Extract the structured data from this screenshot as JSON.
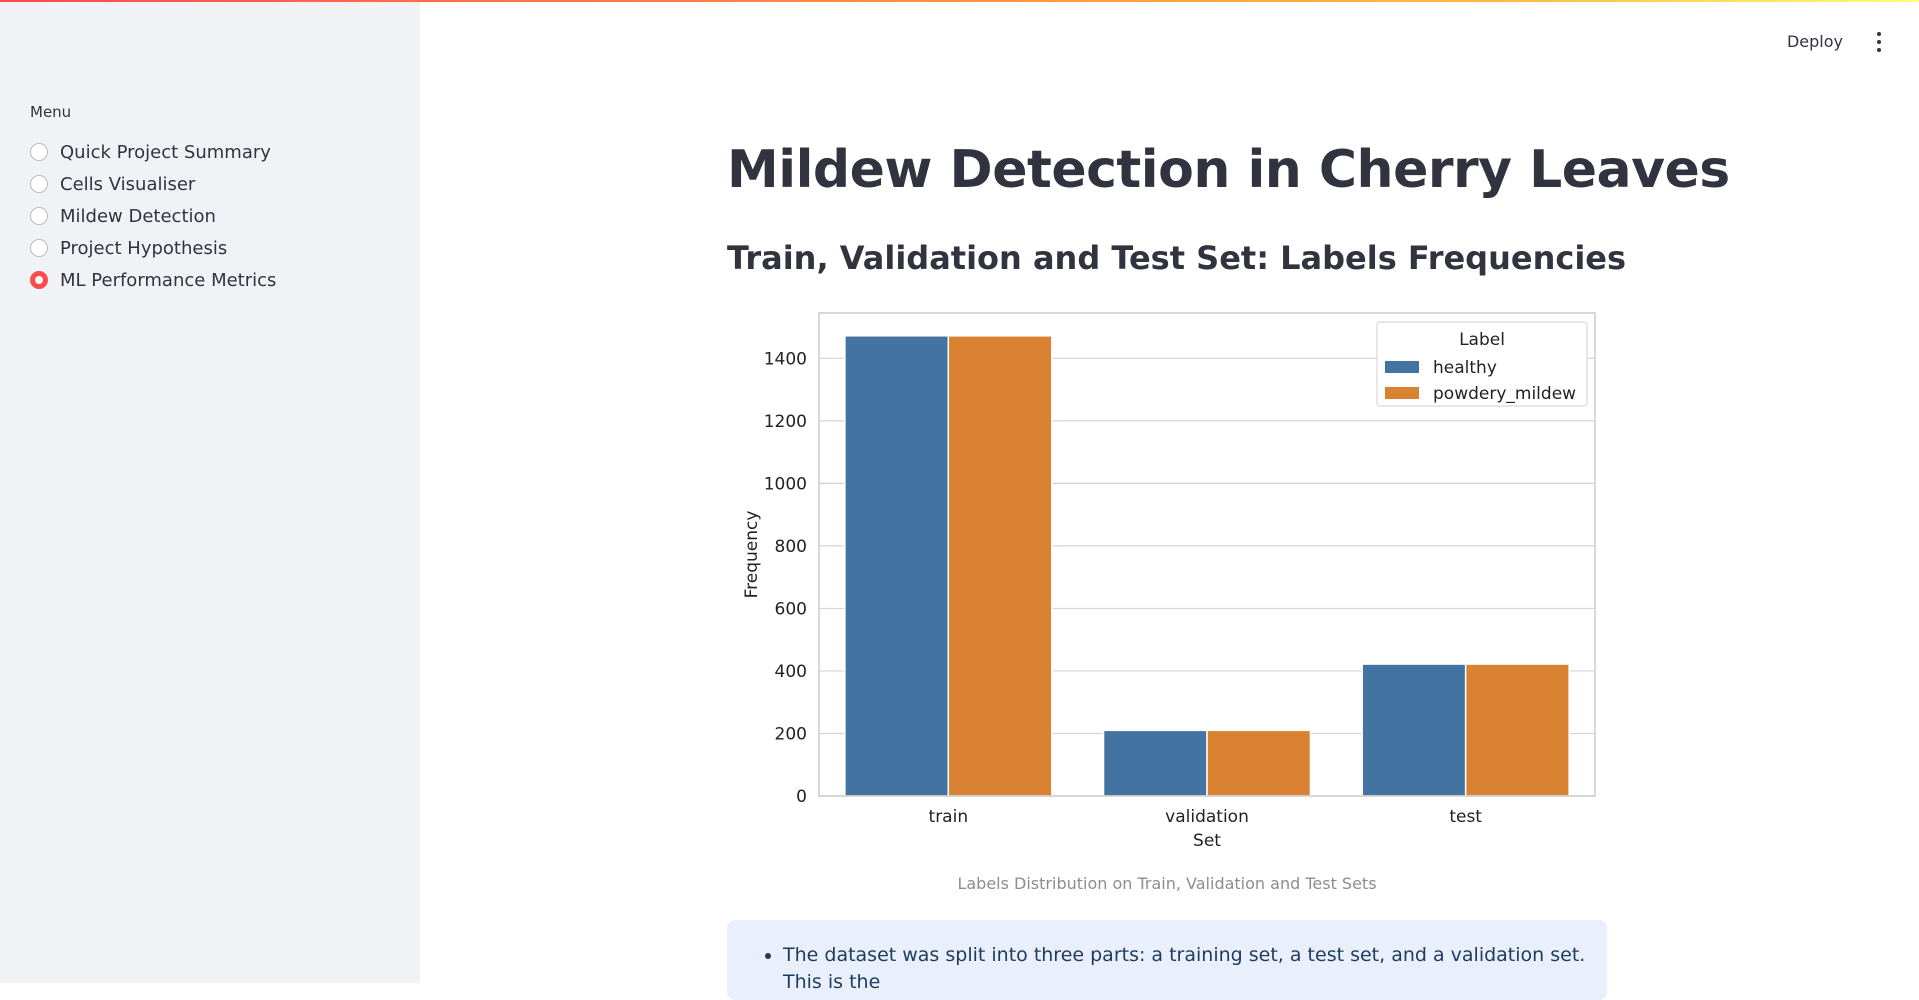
{
  "sidebar": {
    "menu_label": "Menu",
    "items": [
      {
        "label": "Quick Project Summary",
        "selected": false
      },
      {
        "label": "Cells Visualiser",
        "selected": false
      },
      {
        "label": "Mildew Detection",
        "selected": false
      },
      {
        "label": "Project Hypothesis",
        "selected": false
      },
      {
        "label": "ML Performance Metrics",
        "selected": true
      }
    ]
  },
  "header": {
    "deploy_label": "Deploy",
    "menu_icon": "kebab-menu-icon"
  },
  "main": {
    "title": "Mildew Detection in Cherry Leaves",
    "subtitle": "Train, Validation and Test Set: Labels Frequencies",
    "caption": "Labels Distribution on Train, Validation and Test Sets",
    "info_text": "The dataset was split into three parts: a training set, a test set, and a validation set. This is the"
  },
  "colors": {
    "accent": "#ff4b4b",
    "healthy": "#4273a1",
    "powdery_mildew": "#d98232"
  },
  "chart_data": {
    "type": "bar",
    "categories": [
      "train",
      "validation",
      "test"
    ],
    "series": [
      {
        "name": "healthy",
        "values": [
          1472,
          210,
          422
        ],
        "color": "#4273a1"
      },
      {
        "name": "powdery_mildew",
        "values": [
          1472,
          210,
          422
        ],
        "color": "#d98232"
      }
    ],
    "xlabel": "Set",
    "ylabel": "Frequency",
    "ylim": [
      0,
      1545
    ],
    "yticks": [
      0,
      200,
      400,
      600,
      800,
      1000,
      1200,
      1400
    ],
    "legend_title": "Label",
    "legend_position": "top-right",
    "grid": true
  }
}
